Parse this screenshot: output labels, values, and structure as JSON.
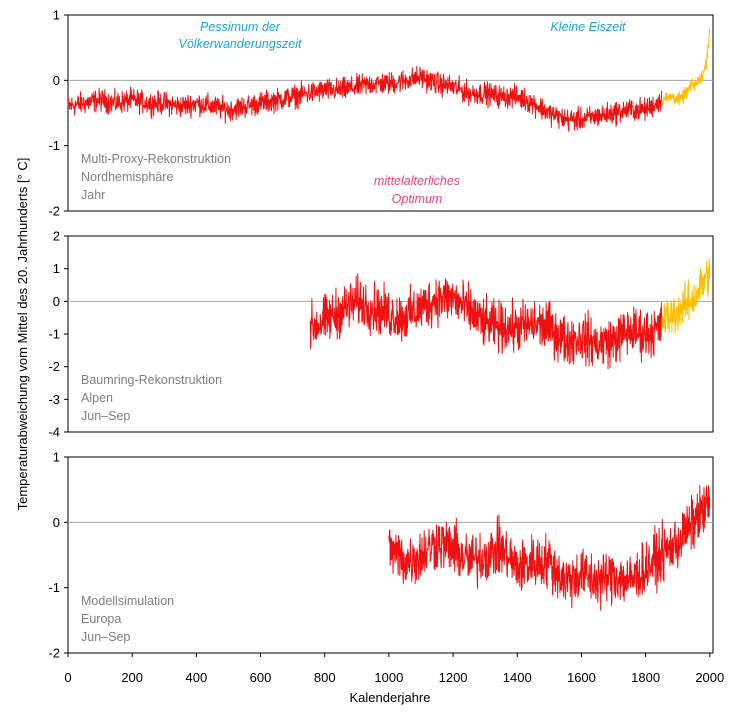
{
  "colors": {
    "reconstruction": "#ee1111",
    "instrumental": "#ffbf00",
    "zero_line": "#a6a6a6",
    "frame": "#000000"
  },
  "y_axis_label": "Temperaturabweichung vom Mittel des 20. Jahrhunderts [° C]",
  "x_axis_label": "Kalenderjahre",
  "annotations": {
    "pessimum_line1": "Pessimum der",
    "pessimum_line2": "Völkerwanderungszeit",
    "kleine_eiszeit": "Kleine Eiszeit",
    "optimum_line1": "mittelalterliches",
    "optimum_line2": "Optimum"
  },
  "chart_data": [
    {
      "type": "line",
      "labels": [
        "Multi-Proxy-Rekonstruktion",
        "Nordhemisphäre",
        "Jahr"
      ],
      "xlim": [
        0,
        2010
      ],
      "ylim": [
        -2,
        1
      ],
      "yticks": [
        1,
        0,
        -1,
        -2
      ],
      "ytick_labels": [
        "1",
        "0",
        "-1",
        "-2"
      ],
      "series": [
        {
          "color": "reconstruction",
          "x_start": 0,
          "x_end": 1850,
          "x": [
            0,
            50,
            100,
            150,
            200,
            250,
            300,
            350,
            400,
            450,
            500,
            550,
            600,
            650,
            700,
            750,
            800,
            850,
            900,
            950,
            1000,
            1050,
            1100,
            1150,
            1200,
            1250,
            1300,
            1350,
            1400,
            1450,
            1500,
            1550,
            1600,
            1650,
            1700,
            1750,
            1800,
            1850
          ],
          "y": [
            -0.4,
            -0.35,
            -0.3,
            -0.35,
            -0.3,
            -0.35,
            -0.35,
            -0.4,
            -0.35,
            -0.4,
            -0.45,
            -0.4,
            -0.35,
            -0.3,
            -0.25,
            -0.2,
            -0.15,
            -0.15,
            -0.1,
            -0.05,
            -0.05,
            0,
            0.05,
            -0.05,
            -0.1,
            -0.2,
            -0.2,
            -0.25,
            -0.25,
            -0.35,
            -0.5,
            -0.6,
            -0.6,
            -0.55,
            -0.5,
            -0.45,
            -0.45,
            -0.3
          ],
          "amplitude": 0.25
        },
        {
          "color": "instrumental",
          "x_start": 1850,
          "x_end": 2000,
          "x": [
            1850,
            1880,
            1910,
            1940,
            1960,
            1980,
            1990,
            2000
          ],
          "y": [
            -0.3,
            -0.25,
            -0.3,
            -0.1,
            -0.05,
            0.1,
            0.3,
            0.8
          ],
          "amplitude": 0.15
        }
      ]
    },
    {
      "type": "line",
      "labels": [
        "Baumring-Rekonstruktion",
        "Alpen",
        "Jun–Sep"
      ],
      "xlim": [
        0,
        2010
      ],
      "ylim": [
        -4,
        2
      ],
      "yticks": [
        2,
        1,
        0,
        -1,
        -2,
        -3,
        -4
      ],
      "ytick_labels": [
        "2",
        "1",
        "0",
        "-1",
        "-2",
        "-3",
        "-4"
      ],
      "series": [
        {
          "color": "reconstruction",
          "x_start": 755,
          "x_end": 1850,
          "x": [
            755,
            800,
            850,
            900,
            950,
            1000,
            1050,
            1100,
            1150,
            1200,
            1250,
            1300,
            1350,
            1400,
            1450,
            1500,
            1550,
            1600,
            1650,
            1700,
            1750,
            1800,
            1850
          ],
          "y": [
            -0.8,
            -0.6,
            -0.3,
            0,
            -0.2,
            -0.4,
            -0.5,
            -0.2,
            0.1,
            0.1,
            -0.3,
            -0.7,
            -0.8,
            -0.8,
            -0.7,
            -0.8,
            -1.2,
            -1.1,
            -1.3,
            -1.2,
            -0.9,
            -1,
            -0.8
          ],
          "amplitude": 1.1
        },
        {
          "color": "instrumental",
          "x_start": 1850,
          "x_end": 2000,
          "x": [
            1850,
            1900,
            1950,
            2000
          ],
          "y": [
            -0.6,
            -0.3,
            0.1,
            0.9
          ],
          "amplitude": 0.9
        }
      ]
    },
    {
      "type": "line",
      "labels": [
        "Modellsimulation",
        "Europa",
        "Jun–Sep"
      ],
      "xlim": [
        0,
        2010
      ],
      "ylim": [
        -2,
        1
      ],
      "yticks": [
        1,
        0,
        -1,
        -2
      ],
      "ytick_labels": [
        "1",
        "0",
        "-1",
        "-2"
      ],
      "series": [
        {
          "color": "reconstruction",
          "x_start": 1000,
          "x_end": 2000,
          "x": [
            1000,
            1050,
            1100,
            1150,
            1200,
            1250,
            1300,
            1350,
            1400,
            1450,
            1500,
            1550,
            1600,
            1650,
            1700,
            1750,
            1800,
            1850,
            1900,
            1950,
            2000
          ],
          "y": [
            -0.4,
            -0.6,
            -0.5,
            -0.3,
            -0.4,
            -0.6,
            -0.5,
            -0.4,
            -0.7,
            -0.6,
            -0.6,
            -0.9,
            -0.8,
            -0.9,
            -0.8,
            -0.9,
            -0.7,
            -0.5,
            -0.3,
            0,
            0.3
          ],
          "amplitude": 0.6
        }
      ]
    }
  ],
  "x_ticks": [
    0,
    200,
    400,
    600,
    800,
    1000,
    1200,
    1400,
    1600,
    1800,
    2000
  ],
  "x_tick_labels": [
    "0",
    "200",
    "400",
    "600",
    "800",
    "1000",
    "1200",
    "1400",
    "1600",
    "1800",
    "2000"
  ]
}
